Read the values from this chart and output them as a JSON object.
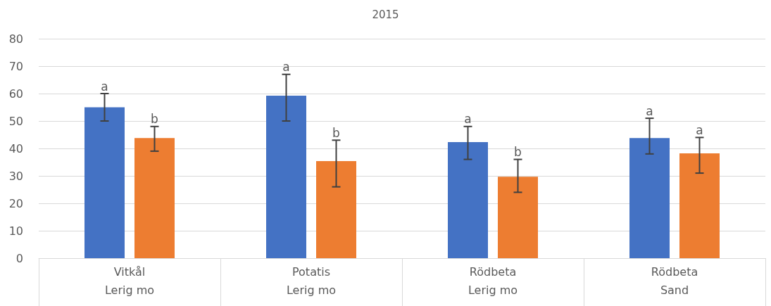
{
  "chart_data": {
    "type": "bar",
    "title": "2015",
    "categories": [
      "Vitkål\nLerig mo",
      "Potatis\nLerig mo",
      "Rödbeta\nLerig mo",
      "Rödbeta\nSand"
    ],
    "series": [
      {
        "color": "#4472c4",
        "values": [
          55,
          59.2,
          42.3,
          43.8
        ],
        "errors": [
          [
            50,
            60
          ],
          [
            50,
            67
          ],
          [
            36,
            48
          ],
          [
            38,
            51
          ]
        ]
      },
      {
        "color": "#ed7d31",
        "values": [
          43.8,
          35.4,
          29.7,
          38.2
        ],
        "errors": [
          [
            39,
            48
          ],
          [
            26,
            43
          ],
          [
            24,
            36
          ],
          [
            31,
            44
          ]
        ]
      }
    ],
    "ylim": [
      0,
      80
    ],
    "yticks": [
      0,
      10,
      20,
      30,
      40,
      50,
      60,
      70,
      80
    ],
    "grid": "y",
    "annotations": [
      "a",
      "b",
      "a",
      "b",
      "a",
      "b",
      "a",
      "a"
    ]
  }
}
